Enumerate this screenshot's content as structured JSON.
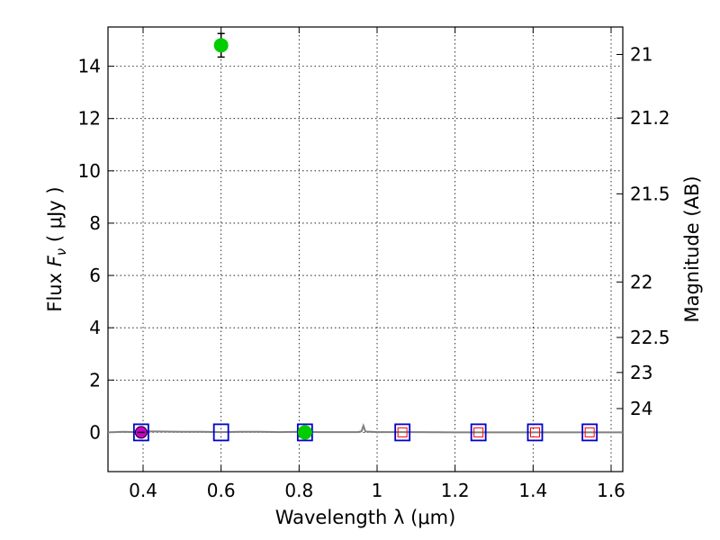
{
  "chart_data": {
    "type": "scatter",
    "xlabel": "Wavelength  λ (μm)",
    "ylabel": "Flux  F_ν  ( μJy )",
    "ylabel_parts": {
      "prefix": "Flux  ",
      "symbol": "F",
      "subscript": "ν",
      "suffix": "  ( μJy )"
    },
    "y2label": "Magnitude (AB)",
    "xlim": [
      0.31,
      1.63
    ],
    "ylim": [
      -1.5,
      15.5
    ],
    "grid": true,
    "x_ticks": [
      0.4,
      0.6,
      0.8,
      1.0,
      1.2,
      1.4,
      1.6
    ],
    "x_tick_labels": [
      "0.4",
      "0.6",
      "0.8",
      "1",
      "1.2",
      "1.4",
      "1.6"
    ],
    "y_ticks": [
      0,
      2,
      4,
      6,
      8,
      10,
      12,
      14
    ],
    "y_tick_labels": [
      "0",
      "2",
      "4",
      "6",
      "8",
      "10",
      "12",
      "14"
    ],
    "y2_ticks": [
      {
        "label": "21",
        "flux": 14.45
      },
      {
        "label": "21.2",
        "flux": 12.02
      },
      {
        "label": "21.5",
        "flux": 9.12
      },
      {
        "label": "22",
        "flux": 5.75
      },
      {
        "label": "22.5",
        "flux": 3.63
      },
      {
        "label": "23",
        "flux": 2.29
      },
      {
        "label": "24",
        "flux": 0.91
      }
    ],
    "colors": {
      "spectrum": "#808080",
      "model_box": "#0000cc",
      "model_box_inner": "#ff0000",
      "observed_green": "#00cc00",
      "observed_purple": "#cc00cc"
    },
    "series": [
      {
        "name": "model spectrum",
        "kind": "line",
        "x": [
          0.31,
          0.35,
          0.38,
          0.4,
          0.45,
          0.5,
          0.55,
          0.6,
          0.65,
          0.7,
          0.75,
          0.8,
          0.85,
          0.9,
          0.95,
          0.96,
          0.965,
          0.97,
          1.0,
          1.05,
          1.1,
          1.2,
          1.3,
          1.4,
          1.5,
          1.63
        ],
        "y": [
          0.0,
          0.02,
          0.01,
          0.04,
          0.03,
          0.02,
          0.02,
          0.01,
          0.02,
          0.02,
          0.01,
          0.02,
          0.01,
          0.01,
          0.01,
          0.04,
          0.25,
          0.03,
          0.01,
          0.01,
          0.01,
          0.0,
          0.0,
          0.0,
          0.0,
          0.0
        ]
      },
      {
        "name": "model band fluxes",
        "kind": "open-square",
        "x": [
          0.395,
          0.6,
          0.815,
          1.065,
          1.26,
          1.405,
          1.545
        ],
        "y": [
          0.0,
          0.0,
          0.0,
          0.0,
          0.0,
          0.0,
          0.0
        ]
      },
      {
        "name": "model band fluxes (inner)",
        "kind": "small-red-square",
        "x": [
          1.065,
          1.26,
          1.405,
          1.545
        ],
        "y": [
          0.0,
          0.0,
          0.0,
          0.0
        ]
      },
      {
        "name": "observed flux",
        "kind": "filled-circle",
        "x": [
          0.6,
          0.815
        ],
        "y": [
          14.8,
          0.0
        ],
        "yerr": [
          0.45,
          0.0
        ]
      },
      {
        "name": "observed flux (u band)",
        "kind": "filled-circle-purple",
        "x": [
          0.395
        ],
        "y": [
          0.0
        ]
      }
    ]
  }
}
